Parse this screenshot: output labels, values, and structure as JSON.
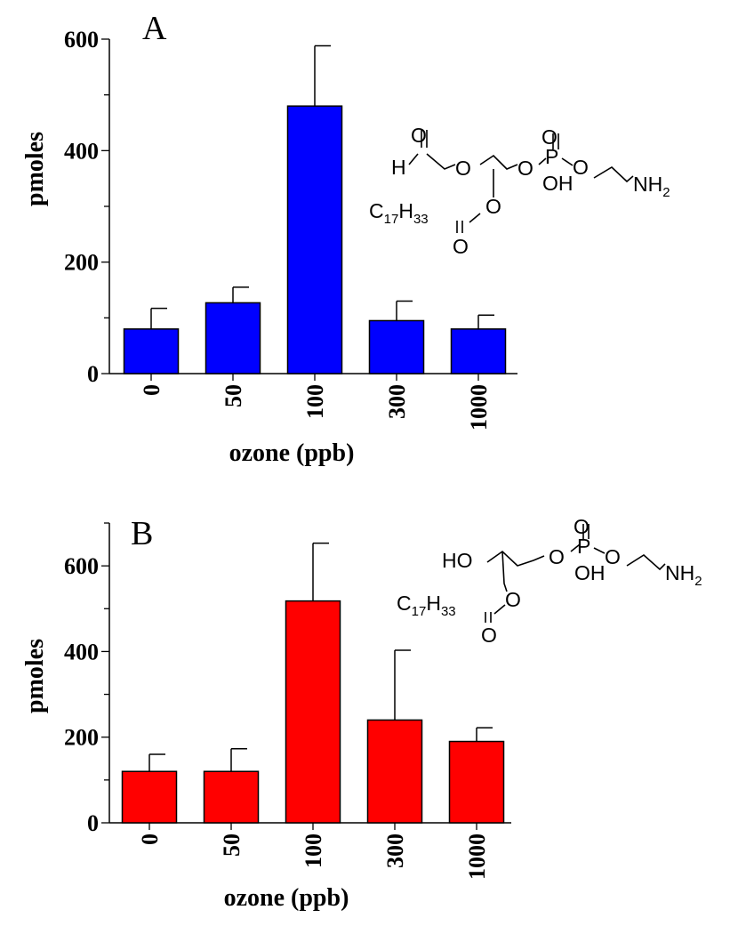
{
  "chart_data": [
    {
      "type": "bar",
      "panel_label": "A",
      "categories": [
        "0",
        "50",
        "100",
        "300",
        "1000"
      ],
      "values": [
        80,
        127,
        480,
        95,
        80
      ],
      "error_upper": [
        117,
        155,
        588,
        130,
        105
      ],
      "xlabel": "ozone (ppb)",
      "ylabel": "pmoles",
      "ylim": [
        0,
        600
      ],
      "yticks": [
        "0",
        "200",
        "400",
        "600"
      ],
      "bar_color": "#0000ff",
      "structure": {
        "formyl_o": "O",
        "h": "H",
        "o1": "O",
        "o_link": "O",
        "p": "P",
        "p_top_o": "O",
        "oh": "OH",
        "p_o": "O",
        "nh2_main": "NH",
        "nh2_sub": "2",
        "acyl_c": "C",
        "acyl_sub1": "17",
        "acyl_h": "H",
        "acyl_sub2": "33",
        "ester_o": "O",
        "carbonyl_o": "O"
      }
    },
    {
      "type": "bar",
      "panel_label": "B",
      "categories": [
        "0",
        "50",
        "100",
        "300",
        "1000"
      ],
      "values": [
        120,
        120,
        518,
        240,
        190
      ],
      "error_upper": [
        160,
        173,
        653,
        403,
        222
      ],
      "xlabel": "ozone (ppb)",
      "ylabel": "pmoles",
      "ylim": [
        0,
        700
      ],
      "yticks": [
        "0",
        "200",
        "400",
        "600"
      ],
      "bar_color": "#ff0000",
      "structure": {
        "ho": "HO",
        "o_link": "O",
        "p": "P",
        "p_top_o": "O",
        "oh": "OH",
        "p_o": "O",
        "nh2_main": "NH",
        "nh2_sub": "2",
        "acyl_c": "C",
        "acyl_sub1": "17",
        "acyl_h": "H",
        "acyl_sub2": "33",
        "ester_o": "O",
        "carbonyl_o": "O"
      }
    }
  ]
}
